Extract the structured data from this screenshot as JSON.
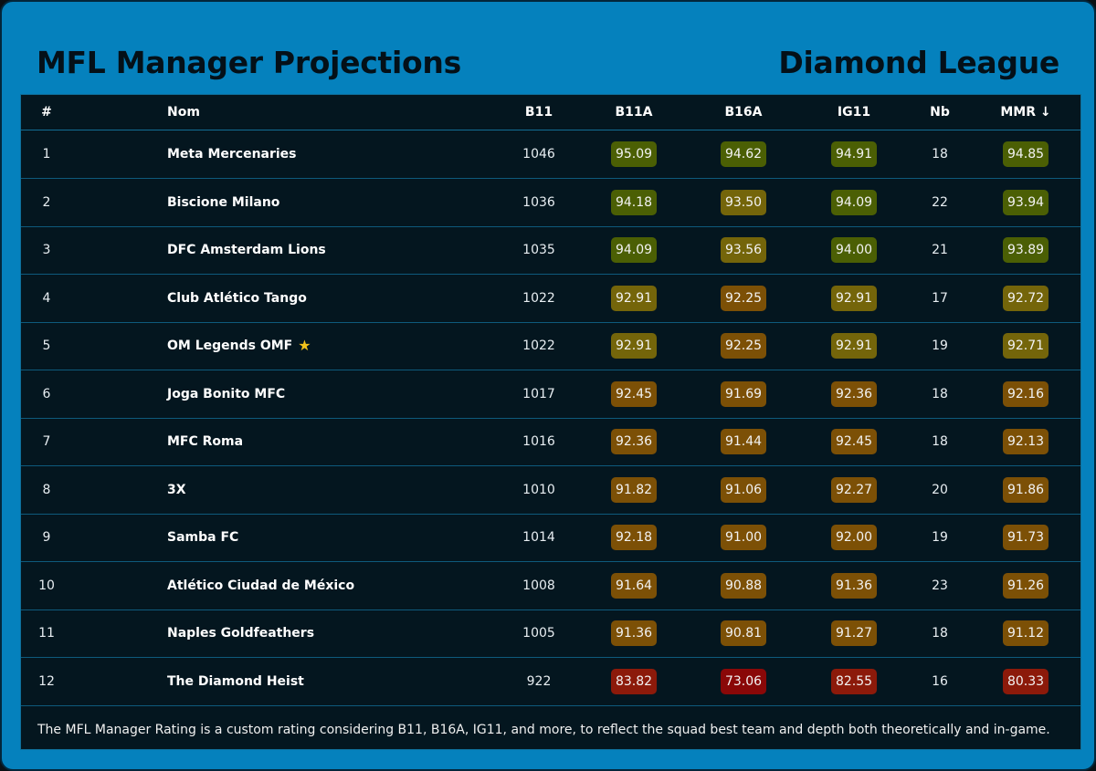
{
  "header": {
    "title": "MFL Manager Projections",
    "league": "Diamond League"
  },
  "table": {
    "columns": {
      "rank": "#",
      "name": "Nom",
      "b11": "B11",
      "b11a": "B11A",
      "b16a": "B16A",
      "ig11": "IG11",
      "nb": "Nb",
      "mmr": "MMR ↓"
    },
    "rows": [
      {
        "rank": "1",
        "name": "Meta Mercenaries",
        "star": false,
        "b11": "1046",
        "b11a": "95.09",
        "b16a": "94.62",
        "ig11": "94.91",
        "nb": "18",
        "mmr": "94.85"
      },
      {
        "rank": "2",
        "name": "Biscione Milano",
        "star": false,
        "b11": "1036",
        "b11a": "94.18",
        "b16a": "93.50",
        "ig11": "94.09",
        "nb": "22",
        "mmr": "93.94"
      },
      {
        "rank": "3",
        "name": "DFC Amsterdam Lions",
        "star": false,
        "b11": "1035",
        "b11a": "94.09",
        "b16a": "93.56",
        "ig11": "94.00",
        "nb": "21",
        "mmr": "93.89"
      },
      {
        "rank": "4",
        "name": "Club Atlético Tango",
        "star": false,
        "b11": "1022",
        "b11a": "92.91",
        "b16a": "92.25",
        "ig11": "92.91",
        "nb": "17",
        "mmr": "92.72"
      },
      {
        "rank": "5",
        "name": "OM Legends OMF",
        "star": true,
        "b11": "1022",
        "b11a": "92.91",
        "b16a": "92.25",
        "ig11": "92.91",
        "nb": "19",
        "mmr": "92.71"
      },
      {
        "rank": "6",
        "name": "Joga Bonito MFC",
        "star": false,
        "b11": "1017",
        "b11a": "92.45",
        "b16a": "91.69",
        "ig11": "92.36",
        "nb": "18",
        "mmr": "92.16"
      },
      {
        "rank": "7",
        "name": "MFC Roma",
        "star": false,
        "b11": "1016",
        "b11a": "92.36",
        "b16a": "91.44",
        "ig11": "92.45",
        "nb": "18",
        "mmr": "92.13"
      },
      {
        "rank": "8",
        "name": "3X",
        "star": false,
        "b11": "1010",
        "b11a": "91.82",
        "b16a": "91.06",
        "ig11": "92.27",
        "nb": "20",
        "mmr": "91.86"
      },
      {
        "rank": "9",
        "name": "Samba FC",
        "star": false,
        "b11": "1014",
        "b11a": "92.18",
        "b16a": "91.00",
        "ig11": "92.00",
        "nb": "19",
        "mmr": "91.73"
      },
      {
        "rank": "10",
        "name": "Atlético Ciudad de México",
        "star": false,
        "b11": "1008",
        "b11a": "91.64",
        "b16a": "90.88",
        "ig11": "91.36",
        "nb": "23",
        "mmr": "91.26"
      },
      {
        "rank": "11",
        "name": "Naples Goldfeathers",
        "star": false,
        "b11": "1005",
        "b11a": "91.36",
        "b16a": "90.81",
        "ig11": "91.27",
        "nb": "18",
        "mmr": "91.12"
      },
      {
        "rank": "12",
        "name": "The Diamond Heist",
        "star": false,
        "b11": "922",
        "b11a": "83.82",
        "b16a": "73.06",
        "ig11": "82.55",
        "nb": "16",
        "mmr": "80.33"
      }
    ]
  },
  "footnote": "The MFL Manager Rating is a custom rating considering B11, B16A, IG11, and more, to reflect the squad best team and depth both theoretically and in-game.",
  "colors": {
    "frame": "#0581bd",
    "panel": "#04161f",
    "badge_high": "#4b5f04",
    "badge_mid": "#74650a",
    "badge_low": "#7c5006",
    "badge_bad": "#8c1a0a",
    "badge_worst": "#8a0808",
    "star": "#f2c21b"
  },
  "icons": {
    "favorite": "star-icon"
  }
}
